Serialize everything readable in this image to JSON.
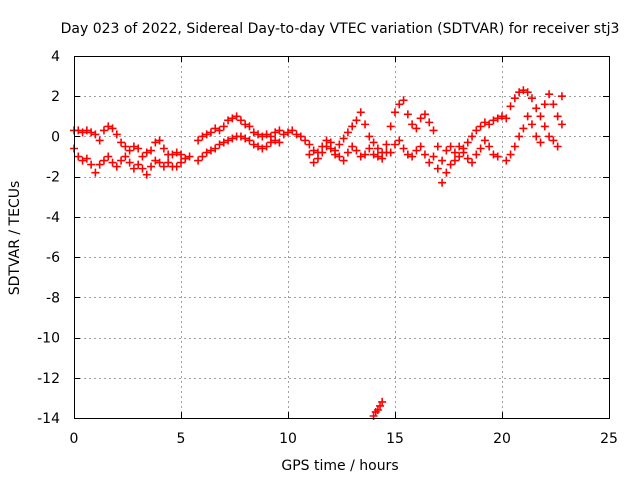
{
  "chart_data": {
    "type": "scatter",
    "title": "Day 023 of 2022, Sidereal Day-to-day VTEC variation (SDTVAR) for receiver stj3",
    "xlabel": "GPS time / hours",
    "ylabel": "SDTVAR / TECUs",
    "xlim": [
      0,
      25
    ],
    "ylim": [
      -14,
      4
    ],
    "x_ticks": [
      0,
      5,
      10,
      15,
      20,
      25
    ],
    "x_tick_labels": [
      "0",
      "5",
      "10",
      "15",
      "20",
      "25"
    ],
    "y_ticks": [
      -14,
      -12,
      -10,
      -8,
      -6,
      -4,
      -2,
      0,
      2,
      4
    ],
    "y_tick_labels": [
      "-14",
      "-12",
      "-10",
      "-8",
      "-6",
      "-4",
      "-2",
      "0",
      "2",
      "4"
    ],
    "grid": true,
    "marker": "plus",
    "series": [
      {
        "name": "SDTVAR",
        "color": "#ff0000",
        "x": [
          0.0,
          0.2,
          0.4,
          0.6,
          0.8,
          1.0,
          1.2,
          1.4,
          1.6,
          1.8,
          2.0,
          2.2,
          2.4,
          2.6,
          2.8,
          3.0,
          3.2,
          3.4,
          3.6,
          3.8,
          4.0,
          4.2,
          4.4,
          4.6,
          4.8,
          5.0,
          5.2,
          5.4,
          0.0,
          0.2,
          0.4,
          0.6,
          0.8,
          1.0,
          1.2,
          1.4,
          1.6,
          1.8,
          2.0,
          2.2,
          2.4,
          2.6,
          2.8,
          3.0,
          3.2,
          3.4,
          3.6,
          3.8,
          4.0,
          4.2,
          4.4,
          4.6,
          4.8,
          5.0,
          5.2,
          5.8,
          6.0,
          6.2,
          6.4,
          6.6,
          6.8,
          7.0,
          7.2,
          7.4,
          7.6,
          7.8,
          8.0,
          8.2,
          8.4,
          8.6,
          8.8,
          9.0,
          9.2,
          9.4,
          9.6,
          9.8,
          10.0,
          10.2,
          10.4,
          10.6,
          10.8,
          5.8,
          6.0,
          6.2,
          6.4,
          6.6,
          6.8,
          7.0,
          7.2,
          7.4,
          7.6,
          7.8,
          8.0,
          8.2,
          8.4,
          8.6,
          8.8,
          9.0,
          9.2,
          9.4,
          9.6,
          11.0,
          11.2,
          11.4,
          11.6,
          11.8,
          12.0,
          12.2,
          12.4,
          12.6,
          12.8,
          13.0,
          13.2,
          13.4,
          13.6,
          13.8,
          14.0,
          14.2,
          14.4,
          14.6,
          11.0,
          11.2,
          11.4,
          11.6,
          11.8,
          12.0,
          12.2,
          12.4,
          12.6,
          12.8,
          13.0,
          13.2,
          13.4,
          13.6,
          13.8,
          14.0,
          14.2,
          14.4,
          14.6,
          14.0,
          14.1,
          14.2,
          14.3,
          14.4,
          14.8,
          15.0,
          15.2,
          15.4,
          15.6,
          15.8,
          16.0,
          16.2,
          16.4,
          16.6,
          16.8,
          17.0,
          17.2,
          17.4,
          17.6,
          17.8,
          18.0,
          18.2,
          18.4,
          18.6,
          18.8,
          19.0,
          19.2,
          19.4,
          19.6,
          19.8,
          20.0,
          14.8,
          15.0,
          15.2,
          15.4,
          15.6,
          15.8,
          16.0,
          16.2,
          16.4,
          16.6,
          16.8,
          17.0,
          17.2,
          17.4,
          17.6,
          17.8,
          18.0,
          18.2,
          18.4,
          18.6,
          18.8,
          19.0,
          19.2,
          19.4,
          19.6,
          19.8,
          20.2,
          20.4,
          20.6,
          20.8,
          21.0,
          21.2,
          21.4,
          21.6,
          21.8,
          22.0,
          22.2,
          22.4,
          22.6,
          22.8,
          20.2,
          20.4,
          20.6,
          20.8,
          21.0,
          21.2,
          21.4,
          21.6,
          21.8,
          22.0,
          22.2,
          22.4,
          22.6,
          22.8
        ],
        "y": [
          0.3,
          0.3,
          0.2,
          0.3,
          0.2,
          0.1,
          -0.2,
          0.3,
          0.5,
          0.4,
          0.1,
          -0.3,
          -0.5,
          -0.7,
          -0.5,
          -0.6,
          -1.0,
          -0.8,
          -0.7,
          -0.3,
          -0.2,
          -0.6,
          -0.9,
          -0.9,
          -0.8,
          -0.9,
          -1.1,
          -1.0,
          -0.6,
          -1.0,
          -1.2,
          -1.1,
          -1.4,
          -1.8,
          -1.4,
          -1.2,
          -1.0,
          -1.3,
          -1.5,
          -1.2,
          -1.0,
          -1.3,
          -1.6,
          -1.4,
          -1.6,
          -1.9,
          -1.5,
          -1.2,
          -1.3,
          -1.5,
          -1.3,
          -1.5,
          -1.5,
          -1.3,
          -1.1,
          -0.2,
          0.0,
          0.1,
          0.2,
          0.4,
          0.3,
          0.5,
          0.8,
          0.9,
          1.0,
          0.8,
          0.6,
          0.5,
          0.2,
          0.1,
          0.0,
          0.1,
          0.0,
          0.2,
          0.3,
          0.1,
          0.2,
          0.3,
          0.1,
          0.0,
          -0.2,
          -1.2,
          -1.0,
          -0.8,
          -0.7,
          -0.6,
          -0.4,
          -0.3,
          -0.2,
          -0.1,
          0.0,
          0.0,
          -0.1,
          -0.2,
          -0.4,
          -0.5,
          -0.6,
          -0.5,
          -0.3,
          -0.2,
          -0.3,
          -0.4,
          -0.7,
          -0.8,
          -0.5,
          -0.2,
          -0.6,
          -0.9,
          -0.4,
          -0.1,
          0.2,
          0.5,
          0.8,
          1.2,
          0.6,
          0.0,
          -0.3,
          -0.6,
          -0.8,
          -0.4,
          -0.9,
          -1.3,
          -1.1,
          -0.8,
          -0.5,
          -0.3,
          -0.7,
          -1.0,
          -1.2,
          -0.8,
          -0.5,
          -0.7,
          -1.0,
          -0.9,
          -0.6,
          -0.9,
          -1.0,
          -1.1,
          -0.8,
          -13.9,
          -13.7,
          -13.6,
          -13.4,
          -13.2,
          0.5,
          1.2,
          1.6,
          1.8,
          1.1,
          0.6,
          0.4,
          0.9,
          1.1,
          0.7,
          0.3,
          -0.5,
          -1.2,
          -0.7,
          -0.5,
          -0.8,
          -0.5,
          -0.6,
          -0.3,
          0.0,
          0.3,
          0.5,
          0.7,
          0.6,
          0.8,
          0.9,
          1.0,
          -0.8,
          -0.4,
          -0.2,
          -0.6,
          -0.9,
          -1.0,
          -0.7,
          -0.5,
          -0.9,
          -1.3,
          -1.0,
          -1.6,
          -2.3,
          -1.8,
          -1.4,
          -1.2,
          -1.0,
          -0.8,
          -1.1,
          -1.3,
          -0.9,
          -0.6,
          -0.2,
          -0.5,
          -0.9,
          -1.0,
          0.9,
          1.5,
          1.9,
          2.2,
          2.3,
          2.2,
          1.9,
          1.4,
          1.0,
          1.6,
          2.1,
          1.6,
          1.0,
          2.0,
          -1.2,
          -0.9,
          -0.5,
          0.0,
          0.4,
          1.0,
          0.6,
          0.0,
          -0.3,
          0.5,
          0.0,
          -0.2,
          -0.5,
          0.6
        ]
      }
    ]
  }
}
